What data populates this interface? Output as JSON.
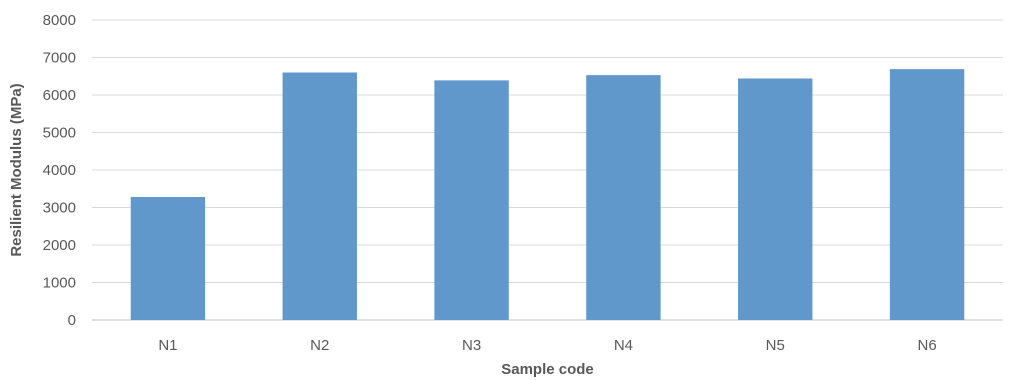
{
  "chart_data": {
    "type": "bar",
    "categories": [
      "N1",
      "N2",
      "N3",
      "N4",
      "N5",
      "N6"
    ],
    "values": [
      3280,
      6600,
      6390,
      6530,
      6440,
      6690
    ],
    "xlabel": "Sample code",
    "ylabel": "Resilient Modulus (MPa)",
    "ylim": [
      0,
      8000
    ],
    "yticks": [
      0,
      1000,
      2000,
      3000,
      4000,
      5000,
      6000,
      7000,
      8000
    ],
    "grid": true,
    "legend": "none",
    "bar_color": "#6198cb"
  }
}
